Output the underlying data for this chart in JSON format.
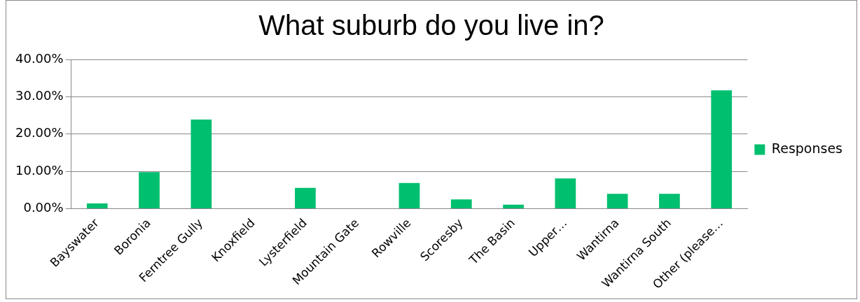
{
  "chart_data": {
    "type": "bar",
    "title": "What suburb do you live in?",
    "categories": [
      "Bayswater",
      "Boronia",
      "Ferntree Gully",
      "Knoxfield",
      "Lysterfield",
      "Mountain Gate",
      "Rowville",
      "Scoresby",
      "The Basin",
      "Upper…",
      "Wantirna",
      "Wantirna South",
      "Other (please…"
    ],
    "series": [
      {
        "name": "Responses",
        "color": "#00bf6f",
        "values": [
          1.4,
          9.8,
          23.9,
          0,
          5.6,
          0,
          6.9,
          2.5,
          1.1,
          8.1,
          4.0,
          4.0,
          31.7
        ]
      }
    ],
    "ylim": [
      0,
      40
    ],
    "yticks": [
      {
        "value": 0,
        "label": "0.00%"
      },
      {
        "value": 10,
        "label": "10.00%"
      },
      {
        "value": 20,
        "label": "20.00%"
      },
      {
        "value": 30,
        "label": "30.00%"
      },
      {
        "value": 40,
        "label": "40.00%"
      }
    ],
    "grid": "y",
    "legend": "right"
  }
}
